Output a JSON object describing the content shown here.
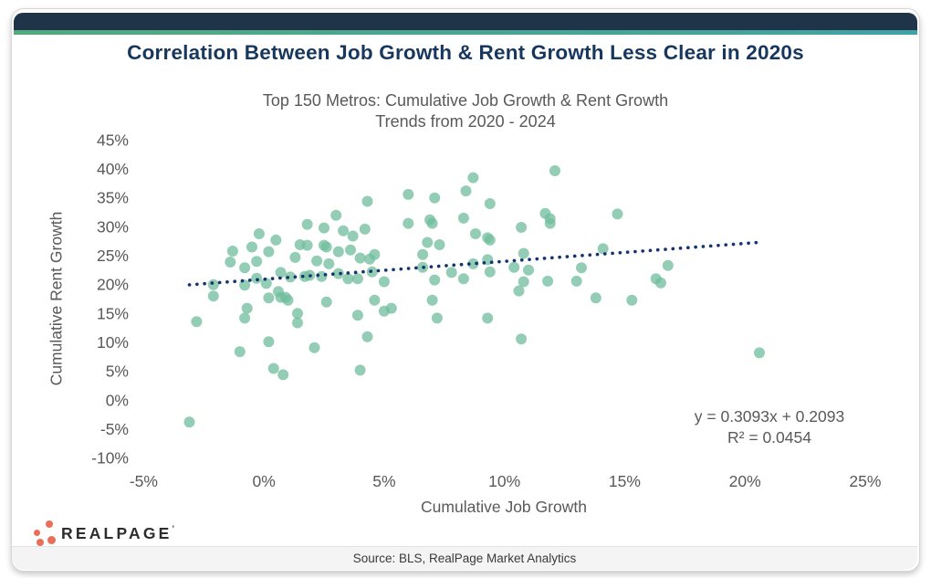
{
  "header": {
    "title": "Correlation Between Job Growth & Rent Growth Less Clear in 2020s"
  },
  "chart": {
    "subtitle_line1": "Top 150 Metros: Cumulative Job Growth & Rent Growth",
    "subtitle_line2": "Trends from 2020 - 2024",
    "x_axis_title": "Cumulative Job Growth",
    "y_axis_title": "Cumulative Rent Growth",
    "equation_line1": "y = 0.3093x + 0.2093",
    "equation_line2": "R² = 0.0454"
  },
  "chart_data": {
    "type": "scatter",
    "title": "Top 150 Metros: Cumulative Job Growth & Rent Growth Trends from 2020 - 2024",
    "xlabel": "Cumulative Job Growth",
    "ylabel": "Cumulative Rent Growth",
    "xlim": [
      -5,
      25
    ],
    "ylim": [
      -10,
      45
    ],
    "x_tick_values": [
      -5,
      0,
      5,
      10,
      15,
      20,
      25
    ],
    "x_tick_labels": [
      "-5%",
      "0%",
      "5%",
      "10%",
      "15%",
      "20%",
      "25%"
    ],
    "y_tick_values": [
      45,
      40,
      35,
      30,
      25,
      20,
      15,
      10,
      5,
      0,
      -5,
      -10
    ],
    "y_tick_labels": [
      "45%",
      "40%",
      "35%",
      "30%",
      "25%",
      "20%",
      "15%",
      "10%",
      "5%",
      "0%",
      "-5%",
      "-10%"
    ],
    "grid": false,
    "legend": "none",
    "point_color": "#6FBC9C",
    "trendline": {
      "slope": 0.3093,
      "intercept": 0.2093,
      "r_squared": 0.0454,
      "x_start_pct": -3.1,
      "x_end_pct": 20.6,
      "color": "#16356E",
      "style": "dotted",
      "equation_label": "y = 0.3093x + 0.2093",
      "r_squared_label": "R² = 0.0454"
    },
    "points_pct": [
      [
        -3.1,
        -3.8
      ],
      [
        -2.8,
        13.6
      ],
      [
        -2.1,
        20.0
      ],
      [
        -2.1,
        18.0
      ],
      [
        -1.4,
        23.9
      ],
      [
        -1.3,
        25.8
      ],
      [
        -1.0,
        8.4
      ],
      [
        -0.8,
        19.9
      ],
      [
        -0.8,
        22.9
      ],
      [
        -0.8,
        14.2
      ],
      [
        -0.7,
        15.9
      ],
      [
        -0.5,
        26.5
      ],
      [
        -0.3,
        24.0
      ],
      [
        -0.3,
        21.1
      ],
      [
        -0.2,
        28.8
      ],
      [
        0.1,
        20.2
      ],
      [
        0.2,
        25.7
      ],
      [
        0.2,
        17.7
      ],
      [
        0.2,
        10.1
      ],
      [
        0.4,
        5.5
      ],
      [
        0.5,
        27.7
      ],
      [
        0.6,
        18.8
      ],
      [
        0.7,
        22.1
      ],
      [
        0.7,
        17.8
      ],
      [
        0.8,
        4.4
      ],
      [
        0.9,
        17.8
      ],
      [
        1.0,
        17.3
      ],
      [
        1.1,
        21.3
      ],
      [
        1.3,
        24.7
      ],
      [
        1.4,
        15.0
      ],
      [
        1.4,
        13.4
      ],
      [
        1.5,
        26.9
      ],
      [
        1.7,
        21.4
      ],
      [
        1.8,
        26.8
      ],
      [
        1.8,
        30.4
      ],
      [
        1.9,
        21.6
      ],
      [
        2.1,
        9.1
      ],
      [
        2.2,
        24.1
      ],
      [
        2.4,
        21.4
      ],
      [
        2.5,
        26.8
      ],
      [
        2.5,
        29.8
      ],
      [
        2.6,
        17.0
      ],
      [
        2.6,
        26.5
      ],
      [
        2.7,
        23.6
      ],
      [
        3.0,
        32.0
      ],
      [
        3.1,
        21.9
      ],
      [
        3.1,
        25.7
      ],
      [
        3.3,
        29.3
      ],
      [
        3.5,
        21.0
      ],
      [
        3.6,
        26.0
      ],
      [
        3.7,
        28.4
      ],
      [
        3.9,
        14.7
      ],
      [
        3.9,
        21.0
      ],
      [
        4.0,
        24.6
      ],
      [
        4.0,
        5.2
      ],
      [
        4.2,
        29.6
      ],
      [
        4.3,
        11.0
      ],
      [
        4.3,
        34.4
      ],
      [
        4.4,
        24.4
      ],
      [
        4.5,
        22.2
      ],
      [
        4.6,
        25.2
      ],
      [
        4.6,
        17.3
      ],
      [
        5.0,
        15.4
      ],
      [
        5.0,
        20.5
      ],
      [
        5.3,
        15.9
      ],
      [
        6.0,
        30.6
      ],
      [
        6.0,
        35.6
      ],
      [
        6.6,
        23.0
      ],
      [
        6.6,
        25.2
      ],
      [
        6.9,
        31.2
      ],
      [
        6.8,
        27.3
      ],
      [
        7.0,
        30.6
      ],
      [
        7.0,
        17.3
      ],
      [
        7.1,
        20.8
      ],
      [
        7.1,
        35.0
      ],
      [
        7.2,
        14.2
      ],
      [
        7.3,
        26.9
      ],
      [
        7.8,
        22.1
      ],
      [
        8.3,
        31.5
      ],
      [
        8.3,
        21.0
      ],
      [
        8.4,
        36.2
      ],
      [
        8.7,
        38.5
      ],
      [
        8.7,
        23.6
      ],
      [
        8.8,
        28.8
      ],
      [
        9.3,
        14.2
      ],
      [
        9.3,
        28.1
      ],
      [
        9.3,
        24.3
      ],
      [
        9.4,
        34.0
      ],
      [
        9.4,
        27.7
      ],
      [
        9.4,
        22.2
      ],
      [
        10.4,
        23.0
      ],
      [
        10.6,
        18.9
      ],
      [
        10.7,
        29.9
      ],
      [
        10.7,
        10.6
      ],
      [
        10.8,
        20.5
      ],
      [
        10.8,
        25.4
      ],
      [
        11.0,
        22.5
      ],
      [
        11.7,
        32.3
      ],
      [
        11.8,
        20.6
      ],
      [
        11.9,
        30.6
      ],
      [
        11.9,
        31.4
      ],
      [
        12.1,
        39.7
      ],
      [
        13.0,
        20.6
      ],
      [
        13.2,
        22.9
      ],
      [
        13.8,
        17.7
      ],
      [
        14.1,
        26.2
      ],
      [
        14.7,
        32.2
      ],
      [
        15.3,
        17.3
      ],
      [
        16.3,
        21.0
      ],
      [
        16.5,
        20.3
      ],
      [
        16.8,
        23.3
      ],
      [
        20.6,
        8.2
      ]
    ]
  },
  "branding": {
    "logo_text": "REALPAGE",
    "logo_tm": "’",
    "logo_dot_color": "#E87057"
  },
  "footer": {
    "source": "Source: BLS, RealPage Market Analytics"
  },
  "colors": {
    "top_bar": "#203449",
    "gradient_left": "#54A97D",
    "gradient_right": "#3FA2A4",
    "title": "#17375E",
    "text_gray": "#595959",
    "point_color": "#6FBC9C",
    "trendline_color": "#16356E"
  }
}
